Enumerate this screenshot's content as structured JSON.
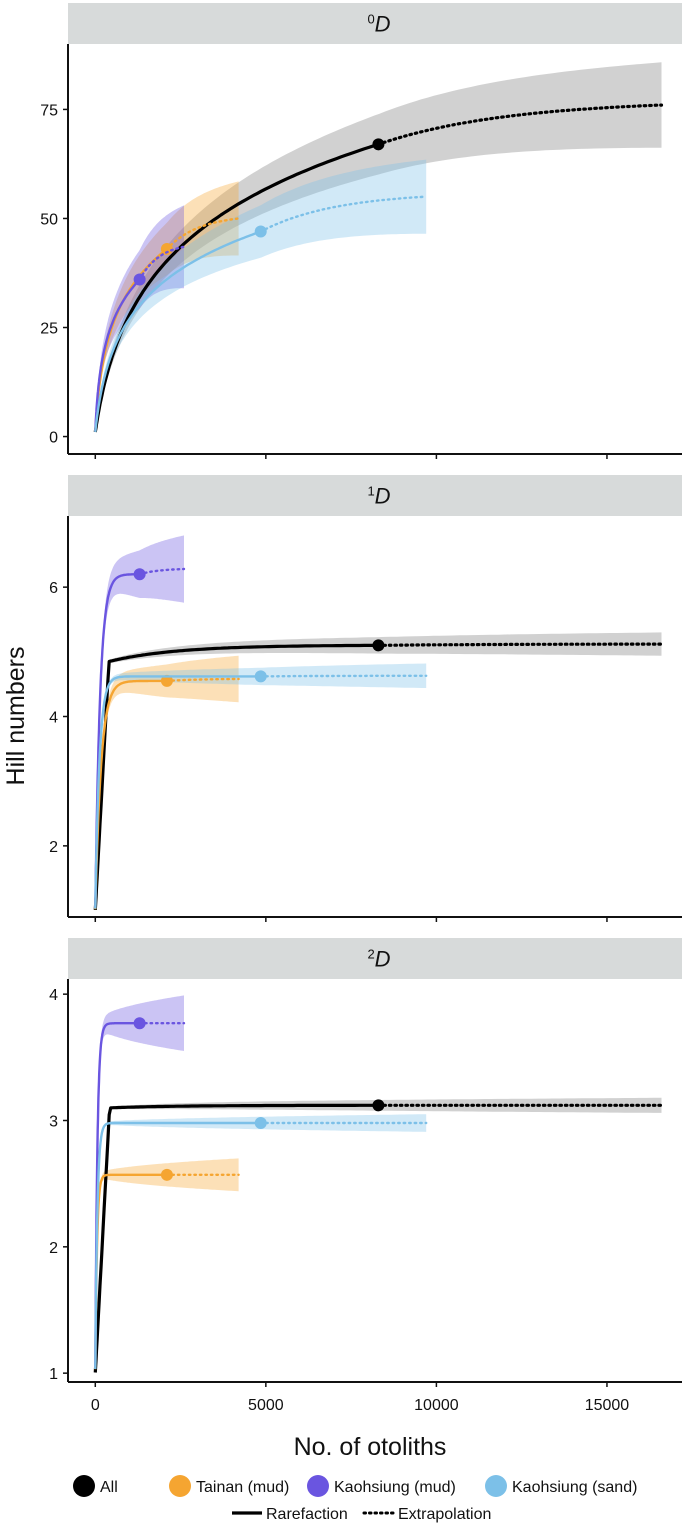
{
  "chart_data": {
    "type": "line",
    "x_label": "No. of otoliths",
    "y_label": "Hill numbers",
    "x_ticks": [
      0,
      5000,
      10000,
      15000
    ],
    "x_range": [
      -800,
      17200
    ],
    "grid": false,
    "legend_position": "bottom",
    "legend": {
      "series": [
        {
          "key": "all",
          "label": "All",
          "color": "#000000"
        },
        {
          "key": "tainan",
          "label": "Tainan (mud)",
          "color": "#F5A531"
        },
        {
          "key": "kmud",
          "label": "Kaohsiung (mud)",
          "color": "#6A55E0"
        },
        {
          "key": "ksand",
          "label": "Kaohsiung (sand)",
          "color": "#7CC0E8"
        }
      ],
      "methods": [
        {
          "key": "rarefaction",
          "label": "Rarefaction"
        },
        {
          "key": "extrapolation",
          "label": "Extrapolation"
        }
      ]
    },
    "panels": [
      {
        "strip_sup": "0",
        "strip_main": "D",
        "y_range": [
          -4,
          90
        ],
        "y_ticks": [
          "0",
          "25",
          "50",
          "75"
        ],
        "series": [
          {
            "key": "all",
            "n_obs": 8300,
            "obs": 67,
            "n_max": 16600,
            "extrap_end": 76,
            "ci_half_end": 9.8,
            "shape": "log",
            "c": 400
          },
          {
            "key": "tainan",
            "n_obs": 2100,
            "obs": 43,
            "n_max": 4200,
            "extrap_end": 50,
            "ci_half_end": 8.5,
            "shape": "log",
            "c": 100
          },
          {
            "key": "kmud",
            "n_obs": 1300,
            "obs": 36,
            "n_max": 2600,
            "extrap_end": 43.5,
            "ci_half_end": 9.5,
            "shape": "log",
            "c": 60
          },
          {
            "key": "ksand",
            "n_obs": 4850,
            "obs": 47,
            "n_max": 9700,
            "extrap_end": 55,
            "ci_half_end": 8.5,
            "shape": "log",
            "c": 180
          }
        ]
      },
      {
        "strip_sup": "1",
        "strip_main": "D",
        "y_range": [
          0.9,
          7.1
        ],
        "y_ticks": [
          "2",
          "4",
          "6"
        ],
        "series": [
          {
            "key": "all",
            "n_obs": 8300,
            "obs": 5.1,
            "n_max": 16600,
            "extrap_end": 5.12,
            "ci_half_end": 0.18,
            "shape": "knee",
            "knee_n": 400,
            "knee_v": 4.85
          },
          {
            "key": "tainan",
            "n_obs": 2100,
            "obs": 4.55,
            "n_max": 4200,
            "extrap_end": 4.58,
            "ci_half_end": 0.36,
            "shape": "sat",
            "k": 170
          },
          {
            "key": "kmud",
            "n_obs": 1300,
            "obs": 6.2,
            "n_max": 2600,
            "extrap_end": 6.28,
            "ci_half_end": 0.52,
            "shape": "sat",
            "k": 140
          },
          {
            "key": "ksand",
            "n_obs": 4850,
            "obs": 4.62,
            "n_max": 9700,
            "extrap_end": 4.63,
            "ci_half_end": 0.19,
            "shape": "sat",
            "k": 120
          }
        ]
      },
      {
        "strip_sup": "2",
        "strip_main": "D",
        "y_range": [
          0.93,
          4.12
        ],
        "y_ticks": [
          "1",
          "2",
          "3",
          "4"
        ],
        "series": [
          {
            "key": "all",
            "n_obs": 8300,
            "obs": 3.12,
            "n_max": 16600,
            "extrap_end": 3.12,
            "ci_half_end": 0.06,
            "shape": "knee",
            "knee_n": 420,
            "knee_v": 3.1
          },
          {
            "key": "tainan",
            "n_obs": 2100,
            "obs": 2.57,
            "n_max": 4200,
            "extrap_end": 2.57,
            "ci_half_end": 0.13,
            "shape": "sat",
            "k": 50
          },
          {
            "key": "kmud",
            "n_obs": 1300,
            "obs": 3.77,
            "n_max": 2600,
            "extrap_end": 3.77,
            "ci_half_end": 0.22,
            "shape": "sat",
            "k": 60
          },
          {
            "key": "ksand",
            "n_obs": 4850,
            "obs": 2.98,
            "n_max": 9700,
            "extrap_end": 2.98,
            "ci_half_end": 0.07,
            "shape": "sat",
            "k": 60
          }
        ]
      }
    ]
  }
}
